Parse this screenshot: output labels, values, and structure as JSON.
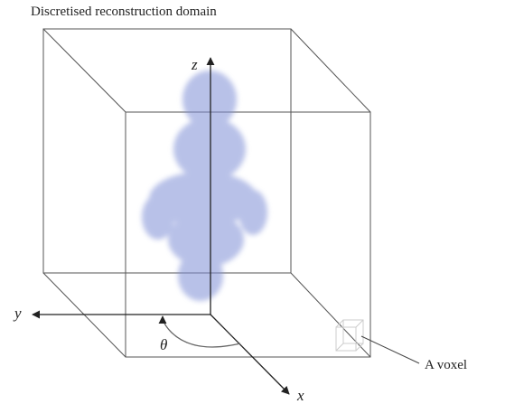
{
  "title": "Discretised reconstruction domain",
  "axes": {
    "z": "z",
    "y": "y",
    "x": "x",
    "angle": "θ"
  },
  "callout": "A voxel"
}
